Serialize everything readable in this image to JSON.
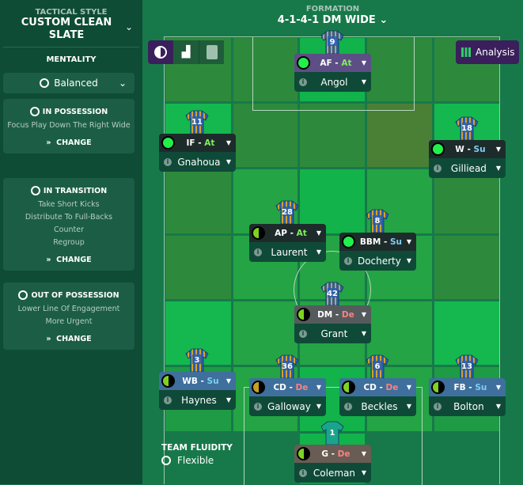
{
  "sidebar": {
    "tactical_style_label": "TACTICAL STYLE",
    "tactical_style": "CUSTOM CLEAN SLATE",
    "mentality_label": "MENTALITY",
    "mentality": "Balanced",
    "cards": [
      {
        "title": "IN POSSESSION",
        "icon": "football-icon",
        "lines": [
          "Focus Play Down The Right Wide"
        ],
        "change": "CHANGE"
      },
      {
        "title": "IN TRANSITION",
        "icon": "transition-icon",
        "lines": [
          "Take Short Kicks",
          "Distribute To Full-Backs",
          "Counter",
          "Regroup"
        ],
        "change": "CHANGE"
      },
      {
        "title": "OUT OF POSSESSION",
        "icon": "shield-icon",
        "lines": [
          "Lower Line Of Engagement",
          "More Urgent"
        ],
        "change": "CHANGE"
      }
    ]
  },
  "formation": {
    "label": "FORMATION",
    "value": "4-1-4-1 DM WIDE"
  },
  "analysis_label": "Analysis",
  "fluidity": {
    "label": "TEAM FLUIDITY",
    "value": "Flexible"
  },
  "colors": {
    "attack_header": "#1e2b2b",
    "af_header": "#5d4e86",
    "dm_header": "#555b5c",
    "def_header": "#3f6f9c",
    "gk_header": "#685c54",
    "green": "#22f04a",
    "lime": "#7ed321",
    "gold": "#c8a020"
  },
  "players": [
    {
      "num": "9",
      "role": "AF",
      "duty": "At",
      "name": "Angol",
      "hdr": "af",
      "cond": "full"
    },
    {
      "num": "11",
      "role": "IF",
      "duty": "At",
      "name": "Gnahoua",
      "hdr": "attack",
      "cond": "full"
    },
    {
      "num": "18",
      "role": "W",
      "duty": "Su",
      "name": "Gilliead",
      "hdr": "attack",
      "cond": "full"
    },
    {
      "num": "28",
      "role": "AP",
      "duty": "At",
      "name": "Laurent",
      "hdr": "attack",
      "cond": "half"
    },
    {
      "num": "8",
      "role": "BBM",
      "duty": "Su",
      "name": "Docherty",
      "hdr": "attack",
      "cond": "full"
    },
    {
      "num": "42",
      "role": "DM",
      "duty": "De",
      "name": "Grant",
      "hdr": "dm",
      "cond": "half"
    },
    {
      "num": "3",
      "role": "WB",
      "duty": "Su",
      "name": "Haynes",
      "hdr": "def",
      "cond": "half"
    },
    {
      "num": "36",
      "role": "CD",
      "duty": "De",
      "name": "Galloway",
      "hdr": "def",
      "cond": "gold"
    },
    {
      "num": "6",
      "role": "CD",
      "duty": "De",
      "name": "Beckles",
      "hdr": "def",
      "cond": "half"
    },
    {
      "num": "13",
      "role": "FB",
      "duty": "Su",
      "name": "Bolton",
      "hdr": "def",
      "cond": "half"
    },
    {
      "num": "1",
      "role": "G",
      "duty": "De",
      "name": "Coleman",
      "hdr": "gk",
      "cond": "half"
    }
  ]
}
